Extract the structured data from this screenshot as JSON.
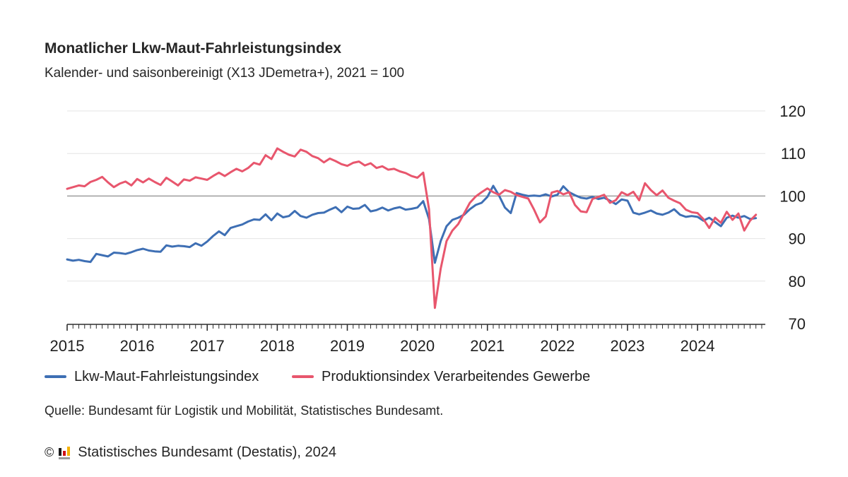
{
  "header": {
    "title": "Monatlicher Lkw-Maut-Fahrleistungsindex",
    "subtitle": "Kalender- und saisonbereinigt (X13 JDemetra+), 2021 = 100"
  },
  "legend": [
    {
      "label": "Lkw-Maut-Fahrleistungsindex",
      "color": "#3e6fb4"
    },
    {
      "label": "Produktionsindex Verarbeitendes Gewerbe",
      "color": "#e8566d"
    }
  ],
  "source": "Quelle: Bundesamt für Logistik und Mobilität, Statistisches Bundesamt.",
  "footer": {
    "copyright": "©",
    "text": "Statistisches Bundesamt (Destatis), 2024",
    "logo_bar_colors": [
      "#1a1a1a",
      "#d01317",
      "#f5b200"
    ],
    "logo_base_color": "#9b9b9b"
  },
  "colors": {
    "grid_light": "#e4e4e4",
    "baseline_100": "#9e9e9e",
    "axis": "#2f2f2f",
    "tick_text": "#1f1f1f"
  },
  "chart_data": {
    "type": "line",
    "title": "Monatlicher Lkw-Maut-Fahrleistungsindex",
    "subtitle": "Kalender- und saisonbereinigt (X13 JDemetra+), 2021 = 100",
    "frequency": "monthly",
    "x_start": "2015-01",
    "x_end": "2024-11",
    "x_tick_labels": [
      "2015",
      "2016",
      "2017",
      "2018",
      "2019",
      "2020",
      "2021",
      "2022",
      "2023",
      "2024"
    ],
    "ylim": [
      70,
      120
    ],
    "y_ticks": [
      70,
      80,
      90,
      100,
      110,
      120
    ],
    "baseline": 100,
    "grid": "horizontal-light",
    "legend_position": "bottom-left",
    "series": [
      {
        "name": "Lkw-Maut-Fahrleistungsindex",
        "color": "#3e6fb4",
        "values": [
          85.1,
          84.8,
          85.0,
          84.7,
          84.5,
          86.4,
          86.1,
          85.8,
          86.7,
          86.6,
          86.4,
          86.8,
          87.3,
          87.6,
          87.2,
          87.0,
          86.9,
          88.4,
          88.1,
          88.3,
          88.2,
          88.0,
          88.9,
          88.3,
          89.3,
          90.6,
          91.7,
          90.8,
          92.5,
          92.9,
          93.3,
          94.0,
          94.5,
          94.4,
          95.7,
          94.3,
          95.9,
          95.0,
          95.3,
          96.5,
          95.3,
          94.9,
          95.6,
          96.0,
          96.1,
          96.8,
          97.4,
          96.2,
          97.5,
          97.0,
          97.1,
          97.9,
          96.4,
          96.7,
          97.3,
          96.6,
          97.1,
          97.4,
          96.8,
          97.0,
          97.3,
          98.8,
          94.6,
          84.3,
          89.4,
          92.9,
          94.4,
          94.9,
          95.6,
          96.9,
          97.9,
          98.4,
          99.8,
          102.4,
          100.1,
          97.3,
          96.0,
          100.7,
          100.3,
          100.0,
          100.1,
          100.0,
          100.4,
          99.9,
          100.3,
          102.3,
          100.9,
          100.2,
          99.6,
          99.4,
          99.8,
          99.3,
          99.6,
          98.9,
          98.1,
          99.2,
          98.9,
          96.1,
          95.7,
          96.1,
          96.6,
          95.9,
          95.6,
          96.1,
          96.9,
          95.6,
          95.1,
          95.3,
          95.1,
          94.2,
          94.9,
          93.9,
          92.9,
          94.9,
          95.4,
          94.9,
          95.3,
          94.6,
          94.8
        ]
      },
      {
        "name": "Produktionsindex Verarbeitendes Gewerbe",
        "color": "#e8566d",
        "values": [
          101.7,
          102.1,
          102.5,
          102.3,
          103.3,
          103.8,
          104.5,
          103.2,
          102.1,
          102.9,
          103.4,
          102.5,
          104.0,
          103.2,
          104.1,
          103.3,
          102.6,
          104.3,
          103.4,
          102.5,
          103.9,
          103.6,
          104.4,
          104.1,
          103.8,
          104.7,
          105.5,
          104.7,
          105.6,
          106.4,
          105.8,
          106.6,
          107.8,
          107.4,
          109.6,
          108.7,
          111.2,
          110.4,
          109.7,
          109.3,
          110.9,
          110.4,
          109.4,
          108.9,
          107.9,
          108.8,
          108.2,
          107.5,
          107.1,
          107.8,
          108.1,
          107.2,
          107.7,
          106.6,
          107.0,
          106.2,
          106.4,
          105.8,
          105.4,
          104.7,
          104.3,
          105.5,
          96.9,
          73.7,
          82.9,
          89.4,
          91.9,
          93.4,
          95.9,
          98.4,
          99.9,
          100.9,
          101.8,
          100.9,
          100.3,
          101.4,
          101.0,
          100.2,
          99.8,
          99.4,
          96.8,
          93.8,
          95.2,
          100.8,
          101.2,
          100.4,
          100.9,
          97.9,
          96.4,
          96.2,
          99.3,
          99.8,
          100.3,
          98.4,
          99.0,
          100.9,
          100.2,
          101.0,
          99.0,
          103.0,
          101.4,
          100.2,
          101.3,
          99.6,
          98.9,
          98.3,
          96.8,
          96.2,
          96.0,
          94.6,
          92.5,
          94.9,
          93.7,
          96.3,
          94.4,
          95.9,
          91.9,
          94.2,
          95.6
        ]
      }
    ]
  }
}
